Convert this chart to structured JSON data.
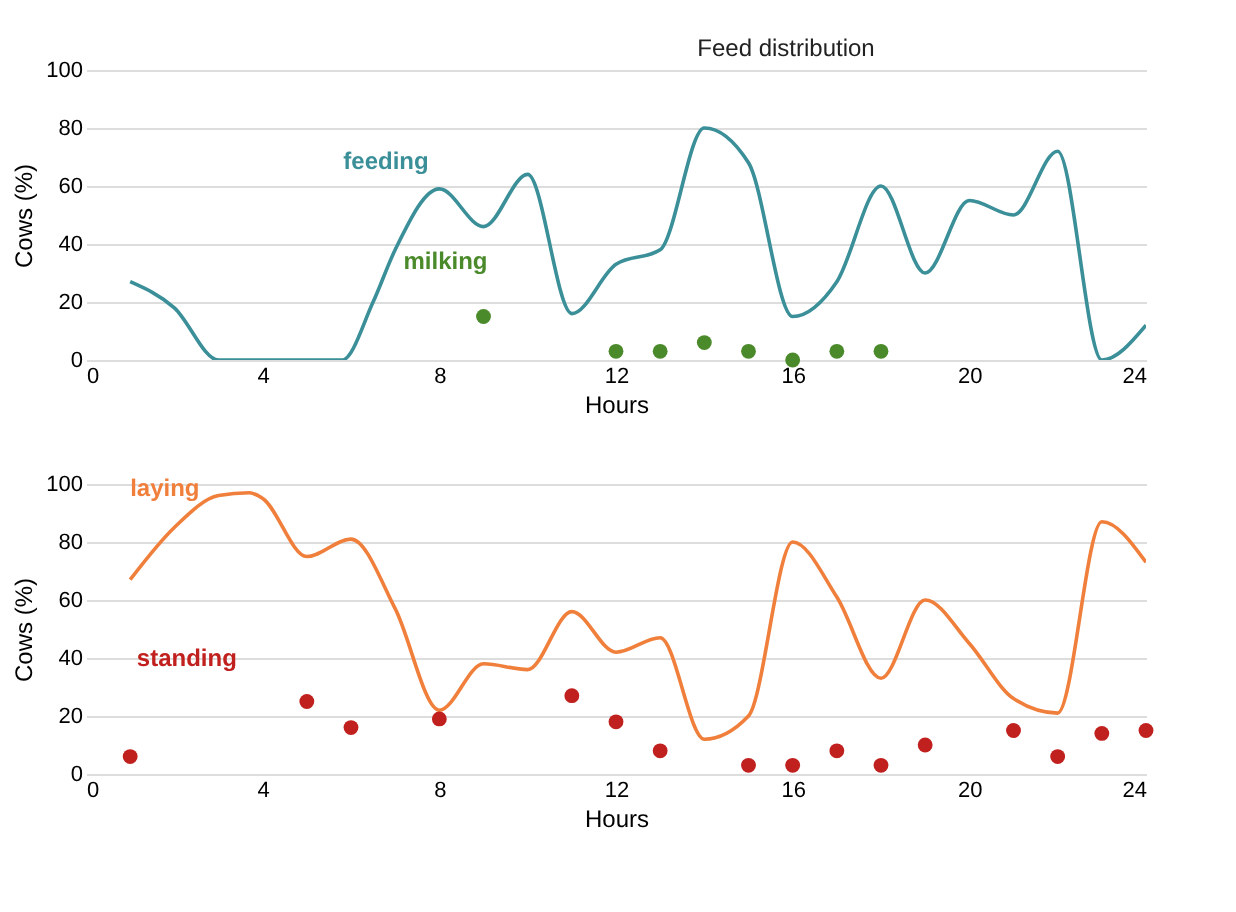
{
  "chart_data": [
    {
      "type": "line",
      "xlabel": "Hours",
      "ylabel": "Cows (%)",
      "xlim": [
        0,
        24
      ],
      "ylim": [
        0,
        100
      ],
      "xticks": [
        0,
        4,
        8,
        12,
        16,
        20,
        24
      ],
      "yticks": [
        0,
        20,
        40,
        60,
        80,
        100
      ],
      "grid": "y",
      "legend": false,
      "annotations": [
        "Feed distribution"
      ],
      "series": [
        {
          "name": "feeding",
          "color": "#3a8f98",
          "x": [
            1,
            2,
            3,
            4,
            5,
            5.8,
            6.5,
            7,
            8,
            9,
            10,
            11,
            12,
            13,
            14,
            15,
            16,
            17,
            18,
            19,
            20,
            21,
            22,
            23,
            24
          ],
          "values": [
            27,
            18,
            0,
            0,
            0,
            0,
            20,
            38,
            59,
            46,
            64,
            16,
            33,
            38,
            80,
            68,
            15,
            27,
            60,
            30,
            55,
            50,
            72,
            0,
            12
          ]
        },
        {
          "name": "milking",
          "type": "scatter",
          "color": "#4a8a2a",
          "x": [
            9,
            12,
            13,
            14,
            15,
            16,
            17,
            18
          ],
          "values": [
            15,
            3,
            3,
            6,
            3,
            0,
            3,
            3
          ]
        }
      ]
    },
    {
      "type": "line",
      "xlabel": "Hours",
      "ylabel": "Cows (%)",
      "xlim": [
        0,
        24
      ],
      "ylim": [
        0,
        100
      ],
      "xticks": [
        0,
        4,
        8,
        12,
        16,
        20,
        24
      ],
      "yticks": [
        0,
        20,
        40,
        60,
        80,
        100
      ],
      "grid": "y",
      "legend": false,
      "series": [
        {
          "name": "laying",
          "color": "#f07f3c",
          "x": [
            1,
            2,
            3,
            3.7,
            4,
            5,
            6,
            7,
            8,
            9,
            10,
            11,
            12,
            13,
            14,
            15,
            16,
            17,
            18,
            19,
            20,
            21,
            22,
            23,
            24
          ],
          "values": [
            67,
            85,
            96,
            97,
            95,
            75,
            81,
            57,
            22,
            38,
            36,
            56,
            42,
            47,
            12,
            20,
            80,
            61,
            33,
            60,
            45,
            26,
            21,
            87,
            73
          ]
        },
        {
          "name": "standing",
          "type": "scatter",
          "color": "#c0201e",
          "x": [
            1,
            5,
            6,
            8,
            11,
            12,
            13,
            15,
            16,
            17,
            18,
            19,
            21,
            22,
            23,
            24
          ],
          "values": [
            6,
            25,
            16,
            19,
            27,
            18,
            8,
            3,
            3,
            8,
            3,
            10,
            15,
            6,
            14,
            15
          ]
        }
      ]
    }
  ]
}
